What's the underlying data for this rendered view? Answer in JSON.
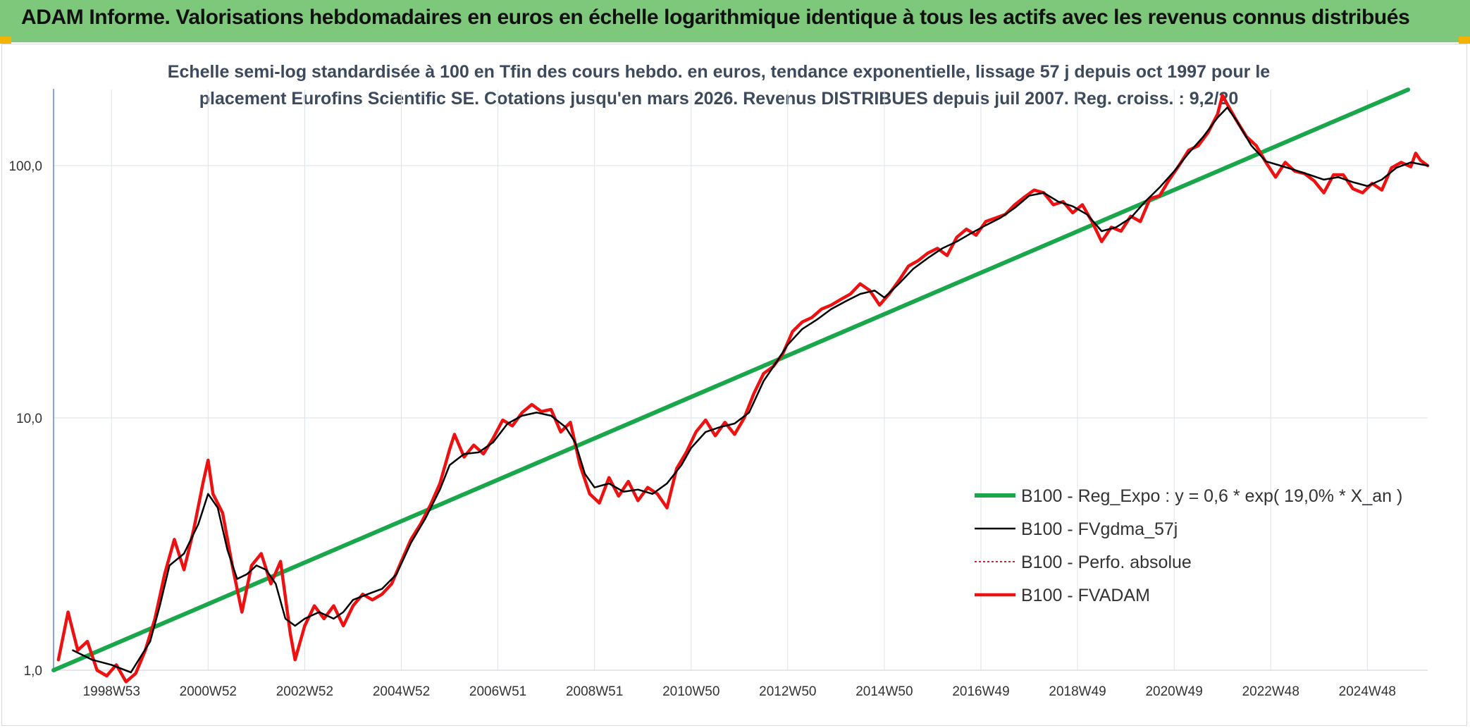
{
  "header": {
    "title": "ADAM Informe. Valorisations hebdomadaires en euros en échelle logarithmique identique à tous les actifs avec les revenus connus distribués",
    "background": "#7dc87a"
  },
  "chart_data": {
    "type": "line",
    "title_line1": "Echelle semi-log standardisée à 100 en Tfin des cours hebdo. en euros, tendance exponentielle, lissage 57 j depuis oct 1997 pour le",
    "title_line2": "placement Eurofins Scientific SE. Cotations jusqu'en mars 2026. Revenus DISTRIBUES depuis juil 2007. Reg. croiss. : 9,2/20",
    "y_scale": "log",
    "ylim": [
      1,
      200
    ],
    "y_ticks": [
      {
        "value": 1,
        "label": "1,0"
      },
      {
        "value": 10,
        "label": "10,0"
      },
      {
        "value": 100,
        "label": "100,0"
      }
    ],
    "xlim": [
      1997.8,
      2026.25
    ],
    "x_ticks": [
      {
        "value": 1999.0,
        "label": "1998W53"
      },
      {
        "value": 2001.0,
        "label": "2000W52"
      },
      {
        "value": 2003.0,
        "label": "2002W52"
      },
      {
        "value": 2005.0,
        "label": "2004W52"
      },
      {
        "value": 2007.0,
        "label": "2006W51"
      },
      {
        "value": 2009.0,
        "label": "2008W51"
      },
      {
        "value": 2011.0,
        "label": "2010W50"
      },
      {
        "value": 2013.0,
        "label": "2012W50"
      },
      {
        "value": 2015.0,
        "label": "2014W50"
      },
      {
        "value": 2017.0,
        "label": "2016W49"
      },
      {
        "value": 2019.0,
        "label": "2018W49"
      },
      {
        "value": 2021.0,
        "label": "2020W49"
      },
      {
        "value": 2023.0,
        "label": "2022W48"
      },
      {
        "value": 2025.0,
        "label": "2024W48"
      }
    ],
    "grid": true,
    "legend_position": "bottom-right",
    "series": [
      {
        "name": "B100 - Reg_Expo : y = 0,6 * exp( 19,0% *  X_an )",
        "color": "#1aa64a",
        "style": "solid-thick",
        "points": [
          [
            1997.8,
            1.0
          ],
          [
            2026.25,
            216
          ]
        ]
      },
      {
        "name": "B100 - FVgdma_57j",
        "color": "#000000",
        "style": "solid",
        "points": [
          [
            1998.2,
            1.2
          ],
          [
            1998.6,
            1.1
          ],
          [
            1999.0,
            1.05
          ],
          [
            1999.4,
            0.98
          ],
          [
            1999.8,
            1.3
          ],
          [
            2000.0,
            1.8
          ],
          [
            2000.2,
            2.6
          ],
          [
            2000.5,
            2.9
          ],
          [
            2000.8,
            3.8
          ],
          [
            2001.0,
            5.0
          ],
          [
            2001.2,
            4.4
          ],
          [
            2001.4,
            3.0
          ],
          [
            2001.6,
            2.3
          ],
          [
            2001.8,
            2.4
          ],
          [
            2002.0,
            2.6
          ],
          [
            2002.2,
            2.5
          ],
          [
            2002.4,
            2.2
          ],
          [
            2002.6,
            1.6
          ],
          [
            2002.8,
            1.5
          ],
          [
            2003.0,
            1.6
          ],
          [
            2003.3,
            1.7
          ],
          [
            2003.6,
            1.6
          ],
          [
            2003.8,
            1.7
          ],
          [
            2004.0,
            1.9
          ],
          [
            2004.3,
            2.0
          ],
          [
            2004.6,
            2.1
          ],
          [
            2004.9,
            2.4
          ],
          [
            2005.2,
            3.2
          ],
          [
            2005.5,
            4.0
          ],
          [
            2005.8,
            5.2
          ],
          [
            2006.0,
            6.5
          ],
          [
            2006.3,
            7.2
          ],
          [
            2006.6,
            7.3
          ],
          [
            2006.9,
            8.0
          ],
          [
            2007.2,
            9.5
          ],
          [
            2007.5,
            10.2
          ],
          [
            2007.8,
            10.5
          ],
          [
            2008.1,
            10.2
          ],
          [
            2008.4,
            9.2
          ],
          [
            2008.6,
            8.0
          ],
          [
            2008.8,
            6.0
          ],
          [
            2009.0,
            5.3
          ],
          [
            2009.3,
            5.5
          ],
          [
            2009.6,
            5.1
          ],
          [
            2009.9,
            5.2
          ],
          [
            2010.2,
            5.0
          ],
          [
            2010.5,
            5.5
          ],
          [
            2010.8,
            6.5
          ],
          [
            2011.0,
            7.6
          ],
          [
            2011.3,
            8.8
          ],
          [
            2011.6,
            9.2
          ],
          [
            2011.9,
            9.5
          ],
          [
            2012.2,
            10.5
          ],
          [
            2012.5,
            14.0
          ],
          [
            2012.8,
            17.0
          ],
          [
            2013.0,
            19.5
          ],
          [
            2013.3,
            22.5
          ],
          [
            2013.6,
            24.5
          ],
          [
            2013.9,
            27.0
          ],
          [
            2014.2,
            29.0
          ],
          [
            2014.5,
            31.0
          ],
          [
            2014.8,
            32.0
          ],
          [
            2015.0,
            30.0
          ],
          [
            2015.3,
            34.0
          ],
          [
            2015.6,
            39.0
          ],
          [
            2015.9,
            43.0
          ],
          [
            2016.2,
            47.0
          ],
          [
            2016.5,
            50.0
          ],
          [
            2016.8,
            54.0
          ],
          [
            2017.1,
            58.0
          ],
          [
            2017.4,
            62.0
          ],
          [
            2017.7,
            68.0
          ],
          [
            2018.0,
            76.0
          ],
          [
            2018.3,
            78.0
          ],
          [
            2018.6,
            72.0
          ],
          [
            2018.9,
            69.0
          ],
          [
            2019.2,
            64.0
          ],
          [
            2019.5,
            55.0
          ],
          [
            2019.8,
            57.0
          ],
          [
            2020.1,
            62.0
          ],
          [
            2020.4,
            72.0
          ],
          [
            2020.7,
            82.0
          ],
          [
            2021.0,
            95.0
          ],
          [
            2021.3,
            112.0
          ],
          [
            2021.6,
            130.0
          ],
          [
            2021.9,
            155.0
          ],
          [
            2022.1,
            170.0
          ],
          [
            2022.3,
            150.0
          ],
          [
            2022.6,
            120.0
          ],
          [
            2022.9,
            104.0
          ],
          [
            2023.2,
            100.0
          ],
          [
            2023.5,
            96.0
          ],
          [
            2023.8,
            92.0
          ],
          [
            2024.1,
            88.0
          ],
          [
            2024.4,
            90.0
          ],
          [
            2024.7,
            86.0
          ],
          [
            2025.0,
            83.0
          ],
          [
            2025.3,
            88.0
          ],
          [
            2025.6,
            98.0
          ],
          [
            2025.9,
            103.0
          ],
          [
            2026.25,
            100.0
          ]
        ]
      },
      {
        "name": "B100 - Perfo. absolue",
        "color": "#e0201a",
        "style": "dotted",
        "points": []
      },
      {
        "name": "B100 - FVADAM",
        "color": "#ee1111",
        "style": "solid-thick",
        "points": [
          [
            1997.9,
            1.1
          ],
          [
            1998.1,
            1.7
          ],
          [
            1998.3,
            1.2
          ],
          [
            1998.5,
            1.3
          ],
          [
            1998.7,
            1.0
          ],
          [
            1998.9,
            0.95
          ],
          [
            1999.1,
            1.05
          ],
          [
            1999.3,
            0.9
          ],
          [
            1999.5,
            0.97
          ],
          [
            1999.7,
            1.2
          ],
          [
            1999.9,
            1.6
          ],
          [
            2000.1,
            2.4
          ],
          [
            2000.3,
            3.3
          ],
          [
            2000.5,
            2.5
          ],
          [
            2000.7,
            3.6
          ],
          [
            2000.9,
            5.6
          ],
          [
            2001.0,
            6.8
          ],
          [
            2001.1,
            5.0
          ],
          [
            2001.3,
            4.2
          ],
          [
            2001.5,
            2.6
          ],
          [
            2001.7,
            1.7
          ],
          [
            2001.9,
            2.6
          ],
          [
            2002.1,
            2.9
          ],
          [
            2002.3,
            2.2
          ],
          [
            2002.5,
            2.7
          ],
          [
            2002.7,
            1.4
          ],
          [
            2002.8,
            1.1
          ],
          [
            2003.0,
            1.5
          ],
          [
            2003.2,
            1.8
          ],
          [
            2003.4,
            1.6
          ],
          [
            2003.6,
            1.8
          ],
          [
            2003.8,
            1.5
          ],
          [
            2004.0,
            1.8
          ],
          [
            2004.2,
            2.0
          ],
          [
            2004.4,
            1.9
          ],
          [
            2004.6,
            2.0
          ],
          [
            2004.8,
            2.2
          ],
          [
            2005.0,
            2.7
          ],
          [
            2005.2,
            3.3
          ],
          [
            2005.4,
            3.8
          ],
          [
            2005.6,
            4.5
          ],
          [
            2005.8,
            5.5
          ],
          [
            2006.0,
            7.5
          ],
          [
            2006.1,
            8.6
          ],
          [
            2006.3,
            7.0
          ],
          [
            2006.5,
            7.8
          ],
          [
            2006.7,
            7.2
          ],
          [
            2006.9,
            8.3
          ],
          [
            2007.1,
            9.8
          ],
          [
            2007.3,
            9.3
          ],
          [
            2007.5,
            10.5
          ],
          [
            2007.7,
            11.3
          ],
          [
            2007.9,
            10.6
          ],
          [
            2008.1,
            10.8
          ],
          [
            2008.3,
            8.8
          ],
          [
            2008.5,
            9.6
          ],
          [
            2008.7,
            6.5
          ],
          [
            2008.9,
            5.0
          ],
          [
            2009.1,
            4.6
          ],
          [
            2009.3,
            5.8
          ],
          [
            2009.5,
            4.9
          ],
          [
            2009.7,
            5.6
          ],
          [
            2009.9,
            4.7
          ],
          [
            2010.1,
            5.3
          ],
          [
            2010.3,
            5.0
          ],
          [
            2010.5,
            4.4
          ],
          [
            2010.7,
            6.3
          ],
          [
            2010.9,
            7.3
          ],
          [
            2011.1,
            8.8
          ],
          [
            2011.3,
            9.8
          ],
          [
            2011.5,
            8.5
          ],
          [
            2011.7,
            9.6
          ],
          [
            2011.9,
            8.6
          ],
          [
            2012.1,
            10.0
          ],
          [
            2012.3,
            12.5
          ],
          [
            2012.5,
            15.0
          ],
          [
            2012.7,
            16.0
          ],
          [
            2012.9,
            18.0
          ],
          [
            2013.1,
            22.0
          ],
          [
            2013.3,
            24.0
          ],
          [
            2013.5,
            25.0
          ],
          [
            2013.7,
            27.0
          ],
          [
            2013.9,
            28.0
          ],
          [
            2014.1,
            29.5
          ],
          [
            2014.3,
            31.0
          ],
          [
            2014.5,
            34.0
          ],
          [
            2014.7,
            32.0
          ],
          [
            2014.9,
            28.0
          ],
          [
            2015.1,
            31.0
          ],
          [
            2015.3,
            35.0
          ],
          [
            2015.5,
            40.0
          ],
          [
            2015.7,
            42.0
          ],
          [
            2015.9,
            45.0
          ],
          [
            2016.1,
            47.0
          ],
          [
            2016.3,
            44.0
          ],
          [
            2016.5,
            52.0
          ],
          [
            2016.7,
            56.0
          ],
          [
            2016.9,
            53.0
          ],
          [
            2017.1,
            60.0
          ],
          [
            2017.3,
            62.0
          ],
          [
            2017.5,
            64.0
          ],
          [
            2017.7,
            70.0
          ],
          [
            2017.9,
            75.0
          ],
          [
            2018.1,
            80.0
          ],
          [
            2018.3,
            78.0
          ],
          [
            2018.5,
            70.0
          ],
          [
            2018.7,
            72.0
          ],
          [
            2018.9,
            65.0
          ],
          [
            2019.1,
            70.0
          ],
          [
            2019.3,
            60.0
          ],
          [
            2019.5,
            50.0
          ],
          [
            2019.7,
            57.0
          ],
          [
            2019.9,
            55.0
          ],
          [
            2020.1,
            63.0
          ],
          [
            2020.3,
            60.0
          ],
          [
            2020.5,
            74.0
          ],
          [
            2020.7,
            76.0
          ],
          [
            2020.9,
            88.0
          ],
          [
            2021.1,
            100.0
          ],
          [
            2021.3,
            115.0
          ],
          [
            2021.5,
            120.0
          ],
          [
            2021.7,
            135.0
          ],
          [
            2021.9,
            160.0
          ],
          [
            2022.0,
            190.0
          ],
          [
            2022.1,
            175.0
          ],
          [
            2022.3,
            150.0
          ],
          [
            2022.5,
            130.0
          ],
          [
            2022.7,
            120.0
          ],
          [
            2022.9,
            103.0
          ],
          [
            2023.1,
            90.0
          ],
          [
            2023.3,
            103.0
          ],
          [
            2023.5,
            95.0
          ],
          [
            2023.7,
            93.0
          ],
          [
            2023.9,
            87.0
          ],
          [
            2024.1,
            78.0
          ],
          [
            2024.3,
            92.0
          ],
          [
            2024.5,
            92.0
          ],
          [
            2024.7,
            81.0
          ],
          [
            2024.9,
            78.0
          ],
          [
            2025.1,
            85.0
          ],
          [
            2025.3,
            80.0
          ],
          [
            2025.5,
            98.0
          ],
          [
            2025.7,
            103.0
          ],
          [
            2025.9,
            99.0
          ],
          [
            2026.0,
            112.0
          ],
          [
            2026.1,
            105.0
          ],
          [
            2026.25,
            100.0
          ]
        ]
      }
    ]
  }
}
